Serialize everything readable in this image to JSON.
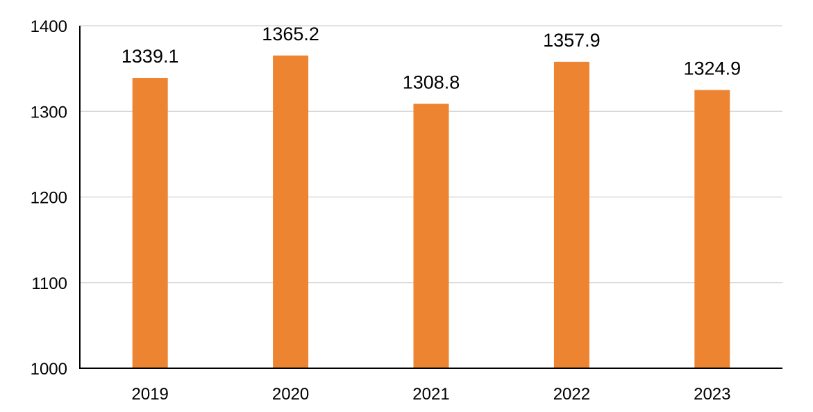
{
  "chart_data": {
    "type": "bar",
    "title": "",
    "xlabel": "",
    "ylabel": "",
    "categories": [
      "2019",
      "2020",
      "2021",
      "2022",
      "2023"
    ],
    "values": [
      1339.1,
      1365.2,
      1308.8,
      1357.9,
      1324.9
    ],
    "data_labels": [
      "1339.1",
      "1365.2",
      "1308.8",
      "1357.9",
      "1324.9"
    ],
    "ylim": [
      1000,
      1400
    ],
    "yticks": [
      1000,
      1100,
      1200,
      1300,
      1400
    ],
    "ytick_labels": [
      "1000",
      "1100",
      "1200",
      "1300",
      "1400"
    ],
    "grid": true,
    "legend": "none",
    "colors": {
      "bar": "#ED8432",
      "grid": "#D9D9D9",
      "axis": "#000000",
      "text": "#000000"
    }
  }
}
